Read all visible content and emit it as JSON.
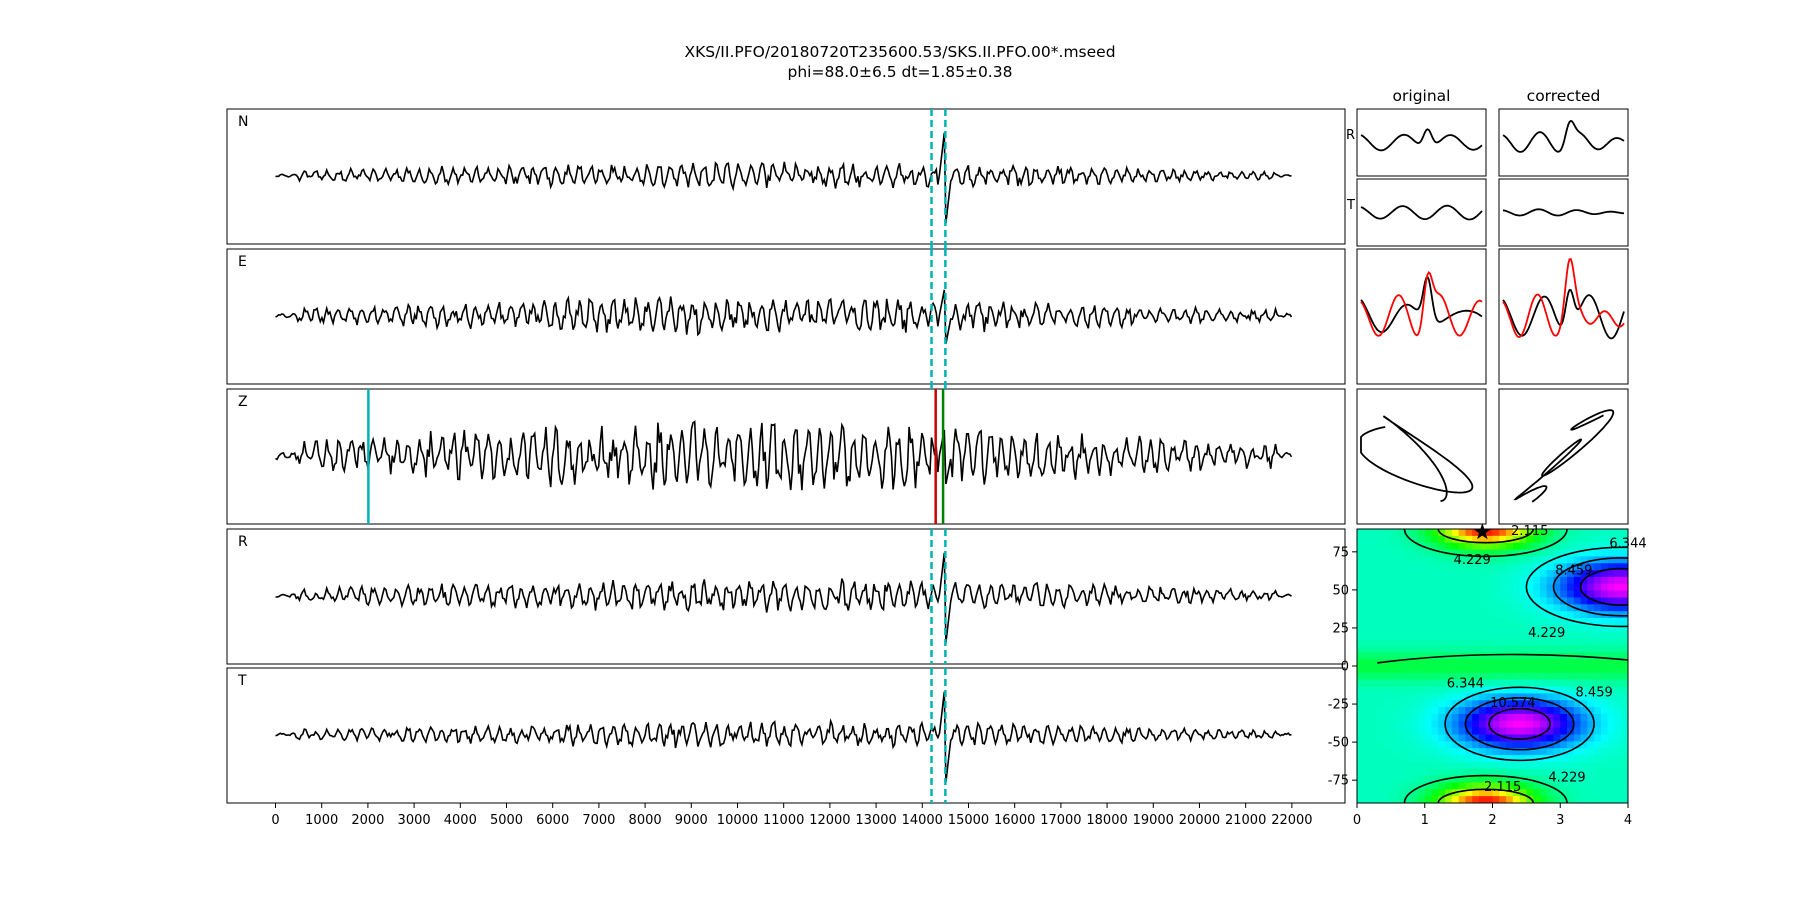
{
  "figure": {
    "title_line1": "XKS/II.PFO/20180720T235600.53/SKS.II.PFO.00*.mseed",
    "title_line2": "phi=88.0±6.5 dt=1.85±0.38"
  },
  "chart_data": [
    {
      "type": "line",
      "name": "seismograms",
      "panel_labels": [
        "N",
        "E",
        "Z",
        "R",
        "T"
      ],
      "x_range": [
        -1050,
        23150
      ],
      "x_ticks": [
        0,
        1000,
        2000,
        3000,
        4000,
        5000,
        6000,
        7000,
        8000,
        9000,
        10000,
        11000,
        12000,
        13000,
        14000,
        15000,
        16000,
        17000,
        18000,
        19000,
        20000,
        21000,
        22000
      ],
      "trace_x_range": [
        0,
        22000
      ],
      "window_lines": {
        "color": "#00b3b3",
        "style": "dashed",
        "x": [
          14200,
          14500
        ],
        "panels": [
          "N",
          "E",
          "R",
          "T"
        ]
      },
      "pick_lines": [
        {
          "panel": "Z",
          "x": 2010,
          "color": "#00b3b3"
        },
        {
          "panel": "Z",
          "x": 14290,
          "color": "#cc0000"
        },
        {
          "panel": "Z",
          "x": 14450,
          "color": "#008000"
        }
      ],
      "trace_color": "#000000",
      "event_x": 14500
    },
    {
      "type": "line",
      "name": "window-waveforms",
      "column_headers": [
        "original",
        "corrected"
      ],
      "row_labels": [
        "R",
        "T"
      ],
      "overlay_colors": [
        "#000000",
        "#ff0000"
      ],
      "particle_motion": "yes"
    },
    {
      "type": "heatmap",
      "name": "misfit-grid",
      "x_ticks": [
        0,
        1,
        2,
        3,
        4
      ],
      "y_ticks": [
        75,
        50,
        25,
        0,
        -25,
        -50,
        -75
      ],
      "xlim": [
        0,
        4
      ],
      "ylim": [
        -90,
        90
      ],
      "best_fit": {
        "dt": 1.85,
        "phi": 88.0
      },
      "colormap": "gist_rainbow",
      "contour_labels": [
        "2.115",
        "4.229",
        "6.344",
        "8.459",
        "4.229",
        "6.344",
        "10.574",
        "8.459",
        "4.229",
        "2.115"
      ]
    }
  ]
}
